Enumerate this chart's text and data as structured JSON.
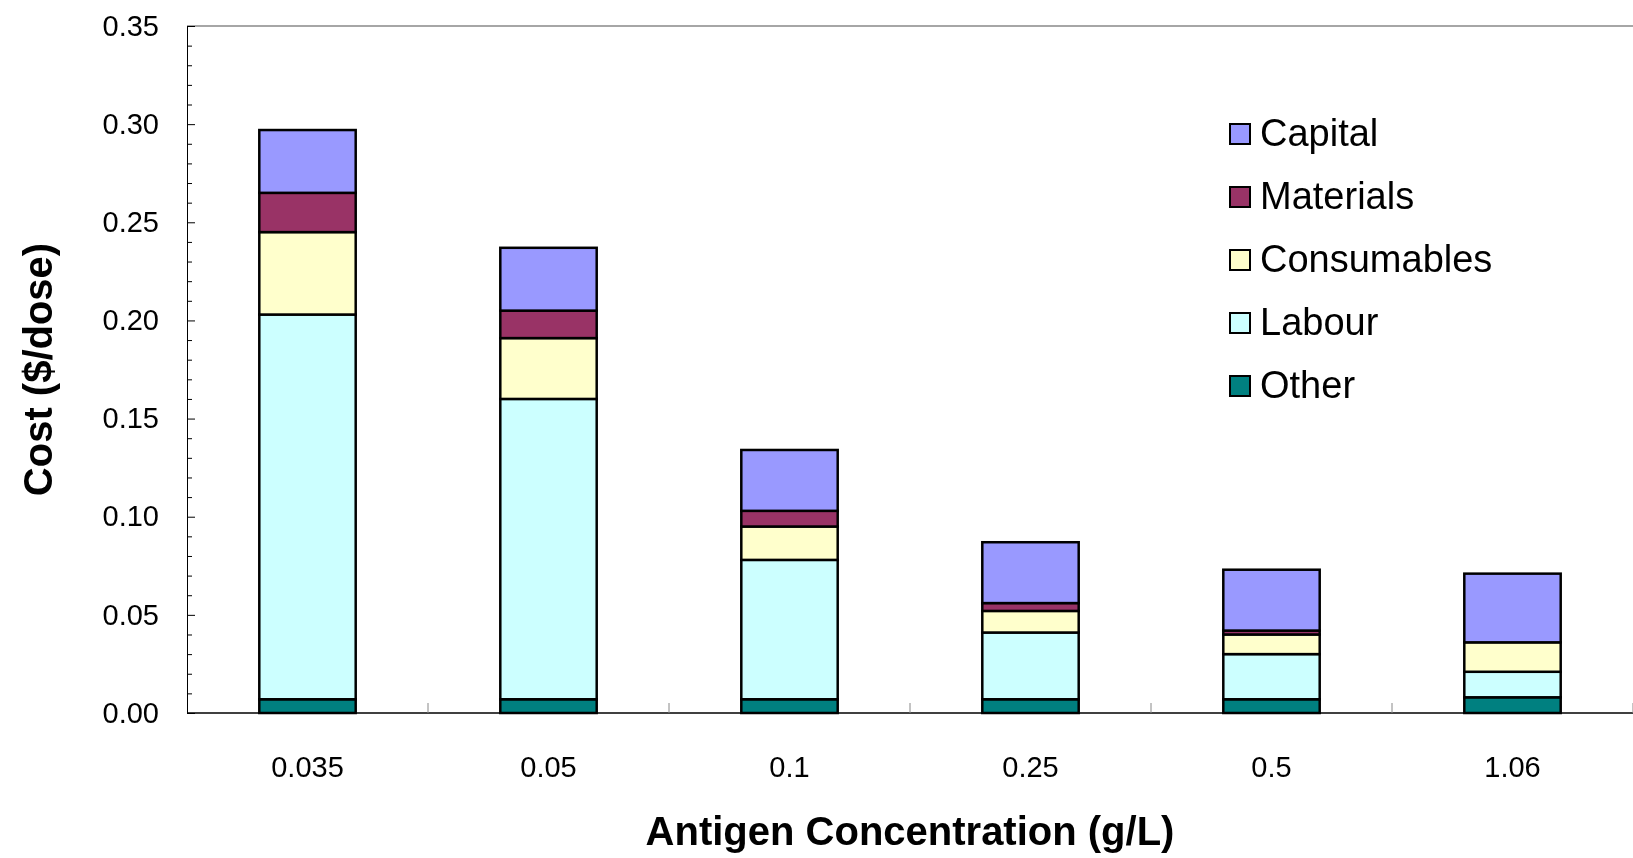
{
  "chart_data": {
    "type": "bar",
    "stacked": true,
    "xlabel": "Antigen Concentration (g/L)",
    "ylabel": "Cost ($/dose)",
    "categories": [
      "0.035",
      "0.05",
      "0.1",
      "0.25",
      "0.5",
      "1.06"
    ],
    "series": [
      {
        "name": "Other",
        "color": "#008080",
        "values": [
          0.007,
          0.007,
          0.007,
          0.007,
          0.007,
          0.008
        ]
      },
      {
        "name": "Labour",
        "color": "#ccffff",
        "values": [
          0.196,
          0.153,
          0.071,
          0.034,
          0.023,
          0.013
        ]
      },
      {
        "name": "Consumables",
        "color": "#ffffcc",
        "values": [
          0.042,
          0.031,
          0.017,
          0.011,
          0.01,
          0.015
        ]
      },
      {
        "name": "Materials",
        "color": "#993366",
        "values": [
          0.02,
          0.014,
          0.008,
          0.004,
          0.002,
          null
        ]
      },
      {
        "name": "Capital",
        "color": "#9999ff",
        "values": [
          0.032,
          0.032,
          0.031,
          0.031,
          0.031,
          0.035
        ]
      }
    ],
    "ylim": [
      0,
      0.35
    ],
    "yticks": [
      {
        "value": 0,
        "label": "0.00"
      },
      {
        "value": 0.01,
        "label": null
      },
      {
        "value": 0.02,
        "label": null
      },
      {
        "value": 0.03,
        "label": null
      },
      {
        "value": 0.04,
        "label": null
      },
      {
        "value": 0.05,
        "label": "0.05"
      },
      {
        "value": 0.06,
        "label": null
      },
      {
        "value": 0.07,
        "label": null
      },
      {
        "value": 0.08,
        "label": null
      },
      {
        "value": 0.09,
        "label": null
      },
      {
        "value": 0.1,
        "label": "0.10"
      },
      {
        "value": 0.11,
        "label": null
      },
      {
        "value": 0.12,
        "label": null
      },
      {
        "value": 0.13,
        "label": null
      },
      {
        "value": 0.14,
        "label": null
      },
      {
        "value": 0.15,
        "label": "0.15"
      },
      {
        "value": 0.16,
        "label": null
      },
      {
        "value": 0.17,
        "label": null
      },
      {
        "value": 0.18,
        "label": null
      },
      {
        "value": 0.19,
        "label": null
      },
      {
        "value": 0.2,
        "label": "0.20"
      },
      {
        "value": 0.21,
        "label": null
      },
      {
        "value": 0.22,
        "label": null
      },
      {
        "value": 0.23,
        "label": null
      },
      {
        "value": 0.24,
        "label": null
      },
      {
        "value": 0.25,
        "label": "0.25"
      },
      {
        "value": 0.26,
        "label": null
      },
      {
        "value": 0.27,
        "label": null
      },
      {
        "value": 0.28,
        "label": null
      },
      {
        "value": 0.29,
        "label": null
      },
      {
        "value": 0.3,
        "label": "0.30"
      },
      {
        "value": 0.31,
        "label": null
      },
      {
        "value": 0.32,
        "label": null
      },
      {
        "value": 0.33,
        "label": null
      },
      {
        "value": 0.34,
        "label": null
      },
      {
        "value": 0.35,
        "label": "0.35"
      }
    ],
    "legend": "top right",
    "grid": false
  }
}
